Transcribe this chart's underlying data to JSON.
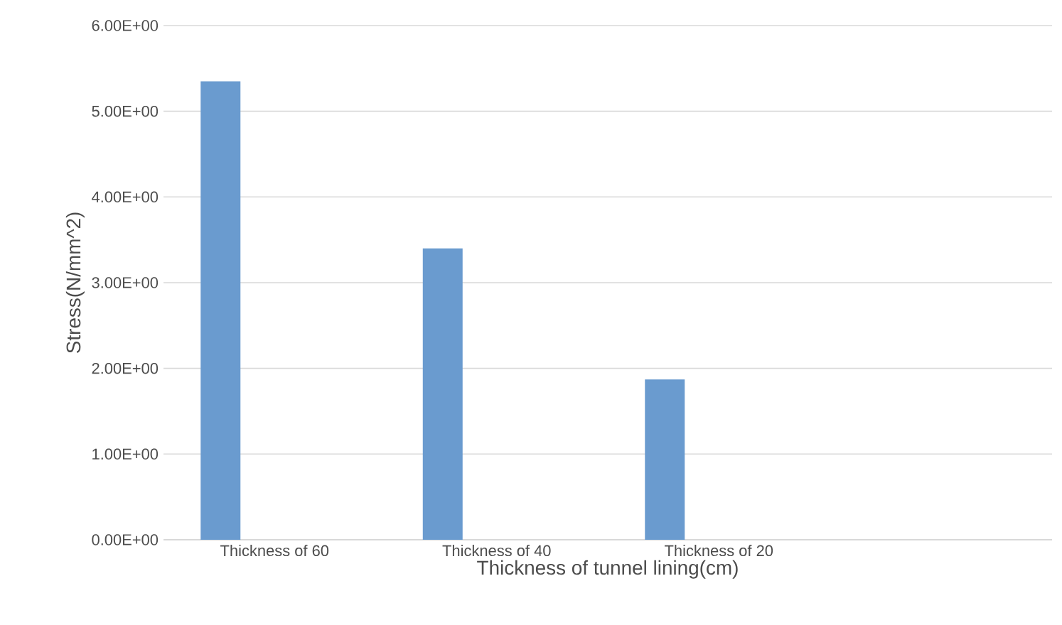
{
  "chart_data": {
    "type": "bar",
    "xlabel": "Thickness of tunnel lining(cm)",
    "ylabel": "Stress(N/mm^2)",
    "categories": [
      "Thickness of 60",
      "Thickness of 40",
      "Thickness of 20",
      null
    ],
    "values": [
      5.35,
      3.4,
      1.87,
      null
    ],
    "color": "#6a9bcf",
    "ylim": [
      0,
      6
    ],
    "yticks": [
      {
        "value": 0,
        "label": "0.00E+00"
      },
      {
        "value": 1,
        "label": "1.00E+00"
      },
      {
        "value": 2,
        "label": "2.00E+00"
      },
      {
        "value": 3,
        "label": "3.00E+00"
      },
      {
        "value": 4,
        "label": "4.00E+00"
      },
      {
        "value": 5,
        "label": "5.00E+00"
      },
      {
        "value": 6,
        "label": "6.00E+00"
      }
    ],
    "grid": "y"
  }
}
